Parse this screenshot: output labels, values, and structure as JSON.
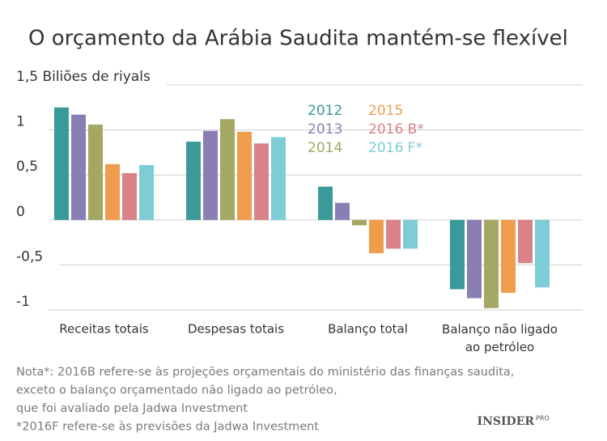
{
  "chart_data": {
    "type": "bar",
    "title": "O orçamento da Arábia Saudita mantém-se flexível",
    "categories": [
      "Receitas totais",
      "Despesas totais",
      "Balanço total",
      "Balanço não ligado\nao petróleo"
    ],
    "series": [
      {
        "name": "2012",
        "color": "#3a9a9a",
        "values": [
          1.25,
          0.87,
          0.37,
          -0.77
        ]
      },
      {
        "name": "2013",
        "color": "#8a7fb5",
        "values": [
          1.17,
          0.99,
          0.19,
          -0.87
        ]
      },
      {
        "name": "2014",
        "color": "#a5a862",
        "values": [
          1.06,
          1.12,
          -0.06,
          -0.98
        ]
      },
      {
        "name": "2015",
        "color": "#ef9d4c",
        "values": [
          0.62,
          0.98,
          -0.37,
          -0.81
        ]
      },
      {
        "name": "2016 B*",
        "color": "#d98287",
        "values": [
          0.52,
          0.85,
          -0.32,
          -0.48
        ]
      },
      {
        "name": "2016 F*",
        "color": "#7ecdd6",
        "values": [
          0.61,
          0.92,
          -0.32,
          -0.75
        ]
      }
    ],
    "ylim": [
      -1,
      1.5
    ],
    "yticks": [
      {
        "value": 1.5,
        "label": "1,5 Biliões de riyals"
      },
      1,
      {
        "value": 0.5,
        "label": "0,5"
      },
      0,
      {
        "value": -0.5,
        "label": "-0,5"
      },
      -1
    ],
    "grid": true,
    "notes": [
      "Nota*: 2016B refere-se às projeções orçamentais do ministério das finanças saudita,",
      "exceto o balanço orçamentado não ligado ao petróleo,",
      "que foi avaliado pela Jadwa Investment",
      "*2016F refere-se às previsões da Jadwa Investment"
    ],
    "brand": "INSIDER",
    "brand_sub": "PRO"
  }
}
